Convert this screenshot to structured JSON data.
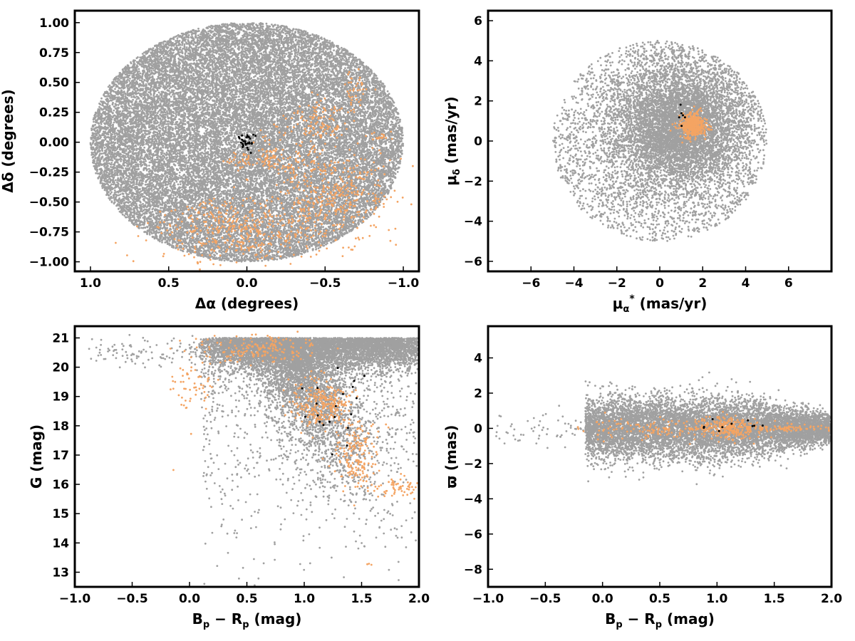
{
  "colors": {
    "field": "#a0a0a0",
    "members": "#f4a463",
    "cluster_core": "#000000"
  },
  "chart_data": [
    {
      "type": "scatter",
      "xlabel": "Δα (degrees)",
      "ylabel": "Δδ (degrees)",
      "xlim": [
        1.1,
        -1.1
      ],
      "ylim": [
        -1.08,
        1.1
      ],
      "x_inverted": true,
      "xticks": [
        "1.0",
        "0.5",
        "0.0",
        "−0.5",
        "−1.0"
      ],
      "yticks": [
        "1.00",
        "0.75",
        "0.50",
        "0.25",
        "0.00",
        "−0.25",
        "−0.50",
        "−0.75",
        "−1.00"
      ],
      "field": {
        "shape": "disk",
        "center": [
          0.0,
          0.0
        ],
        "radius_x": 1.0,
        "radius_y": 1.0,
        "approx_count": 26000
      },
      "members": [
        {
          "center": [
            0.0,
            -0.75
          ],
          "spread": [
            0.32,
            0.13
          ],
          "count": 380
        },
        {
          "center": [
            -0.55,
            -0.45
          ],
          "spread": [
            0.18,
            0.18
          ],
          "count": 360
        },
        {
          "center": [
            -0.45,
            0.17
          ],
          "spread": [
            0.12,
            0.1
          ],
          "count": 120
        },
        {
          "center": [
            -0.68,
            0.4
          ],
          "spread": [
            0.04,
            0.1
          ],
          "count": 40
        },
        {
          "center": [
            -0.3,
            -0.18
          ],
          "spread": [
            0.12,
            0.05
          ],
          "count": 70
        },
        {
          "center": [
            0.02,
            -0.15
          ],
          "spread": [
            0.05,
            0.03
          ],
          "count": 35
        },
        {
          "center": [
            -0.85,
            0.05
          ],
          "spread": [
            0.04,
            0.02
          ],
          "count": 18
        },
        {
          "center": [
            0.18,
            -0.62
          ],
          "spread": [
            0.1,
            0.08
          ],
          "count": 70
        },
        {
          "center": [
            -0.15,
            -0.05
          ],
          "spread": [
            0.05,
            0.1
          ],
          "count": 40
        }
      ],
      "cluster_core": {
        "center": [
          0.0,
          0.0
        ],
        "spread": [
          0.03,
          0.03
        ],
        "count": 30
      }
    },
    {
      "type": "scatter",
      "xlabel": "μα* (mas/yr)",
      "ylabel": "μδ (mas/yr)",
      "xlim": [
        -8,
        8
      ],
      "ylim": [
        -6.5,
        6.5
      ],
      "xticks": [
        "−6",
        "−4",
        "−2",
        "0",
        "2",
        "4",
        "6"
      ],
      "yticks": [
        "6",
        "4",
        "2",
        "0",
        "−2",
        "−4",
        "−6"
      ],
      "field": {
        "shape": "disk",
        "center": [
          0.0,
          0.0
        ],
        "radius_x": 5.0,
        "radius_y": 5.0,
        "core_center": [
          1.0,
          0.8
        ],
        "core_spread": 1.5,
        "approx_count": 9000
      },
      "members": [
        {
          "center": [
            1.55,
            0.8
          ],
          "spread": [
            0.28,
            0.3
          ],
          "count": 420
        }
      ],
      "cluster_core": {
        "center": [
          1.0,
          1.0
        ],
        "spread": [
          0.1,
          0.3
        ],
        "count": 6
      }
    },
    {
      "type": "scatter",
      "xlabel": "Bp − Rp (mag)",
      "ylabel": "G (mag)",
      "xlim": [
        -1.0,
        2.0
      ],
      "ylim": [
        12.5,
        21.4
      ],
      "xticks": [
        "−1.0",
        "−0.5",
        "0.0",
        "0.5",
        "1.0",
        "1.5",
        "2.0"
      ],
      "yticks": [
        "21",
        "20",
        "19",
        "18",
        "17",
        "16",
        "15",
        "14",
        "13"
      ],
      "field": {
        "shape": "cmd",
        "faint_limit": 21.0,
        "approx_count": 10000
      },
      "members": [
        {
          "center": [
            1.15,
            18.7
          ],
          "spread": [
            0.12,
            0.4
          ],
          "count": 260
        },
        {
          "center": [
            1.45,
            17.0
          ],
          "spread": [
            0.1,
            0.6
          ],
          "count": 170
        },
        {
          "center": [
            1.8,
            15.9
          ],
          "spread": [
            0.1,
            0.2
          ],
          "count": 60
        },
        {
          "center": [
            0.6,
            20.6
          ],
          "spread": [
            0.25,
            0.25
          ],
          "count": 170
        },
        {
          "center": [
            0.0,
            19.4
          ],
          "spread": [
            0.12,
            0.5
          ],
          "count": 60
        },
        {
          "center": [
            1.55,
            13.25
          ],
          "spread": [
            0.02,
            0.05
          ],
          "count": 3
        },
        {
          "center": [
            -0.15,
            16.5
          ],
          "spread": [
            0.02,
            0.02
          ],
          "count": 1
        }
      ],
      "cluster_core": {
        "center": [
          1.25,
          18.3
        ],
        "spread": [
          0.15,
          0.8
        ],
        "count": 20
      }
    },
    {
      "type": "scatter",
      "xlabel": "Bp − Rp (mag)",
      "ylabel": "ϖ (mas)",
      "xlim": [
        -1.0,
        2.0
      ],
      "ylim": [
        -9.0,
        5.8
      ],
      "xticks": [
        "−1.0",
        "−0.5",
        "0.0",
        "0.5",
        "1.0",
        "1.5",
        "2.0"
      ],
      "yticks": [
        "4",
        "2",
        "0",
        "−2",
        "−4",
        "−6",
        "−8"
      ],
      "field": {
        "shape": "band",
        "center_y": 0.0,
        "approx_count": 9000
      },
      "members": [
        {
          "center": [
            1.1,
            0.0
          ],
          "spread": [
            0.12,
            0.3
          ],
          "count": 250
        },
        {
          "center": [
            0.5,
            0.0
          ],
          "spread": [
            0.35,
            0.35
          ],
          "count": 150
        },
        {
          "center": [
            1.6,
            0.0
          ],
          "spread": [
            0.2,
            0.08
          ],
          "count": 80
        }
      ],
      "cluster_core": {
        "center": [
          1.2,
          0.2
        ],
        "spread": [
          0.2,
          0.2
        ],
        "count": 10
      }
    }
  ]
}
